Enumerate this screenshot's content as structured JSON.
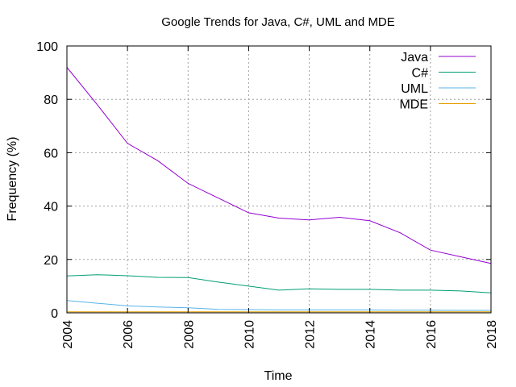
{
  "chart_data": {
    "type": "line",
    "title": "Google Trends for Java, C#, UML and MDE",
    "xlabel": "Time",
    "ylabel": "Frequency (%)",
    "xlim": [
      2004,
      2018
    ],
    "ylim": [
      0,
      100
    ],
    "xticks": [
      "2004",
      "2006",
      "2008",
      "2010",
      "2012",
      "2014",
      "2016",
      "2018"
    ],
    "yticks": [
      "0",
      "20",
      "40",
      "60",
      "80",
      "100"
    ],
    "grid": true,
    "legend_position": "top-right",
    "x": [
      2004,
      2005,
      2006,
      2007,
      2008,
      2009,
      2010,
      2011,
      2012,
      2013,
      2014,
      2015,
      2016,
      2017,
      2018
    ],
    "series": [
      {
        "name": "Java",
        "color": "#9400d3",
        "values": [
          92,
          78,
          63.5,
          57,
          48.5,
          43,
          37.5,
          35.5,
          34.8,
          35.8,
          34.5,
          30,
          23.5,
          21,
          18.5
        ]
      },
      {
        "name": "C#",
        "color": "#009e73",
        "values": [
          13.8,
          14.3,
          13.9,
          13.3,
          13.2,
          11.5,
          10,
          8.5,
          9,
          8.8,
          8.8,
          8.5,
          8.5,
          8.2,
          7.5
        ]
      },
      {
        "name": "UML",
        "color": "#56b4e9",
        "values": [
          4.6,
          3.6,
          2.6,
          2.2,
          1.9,
          1.3,
          1.2,
          1.1,
          1.1,
          1.1,
          1.1,
          1.0,
          1.0,
          0.9,
          0.9
        ]
      },
      {
        "name": "MDE",
        "color": "#e69f00",
        "values": [
          0.4,
          0.4,
          0.4,
          0.4,
          0.4,
          0.4,
          0.4,
          0.4,
          0.4,
          0.4,
          0.4,
          0.4,
          0.4,
          0.4,
          0.4
        ]
      }
    ]
  }
}
